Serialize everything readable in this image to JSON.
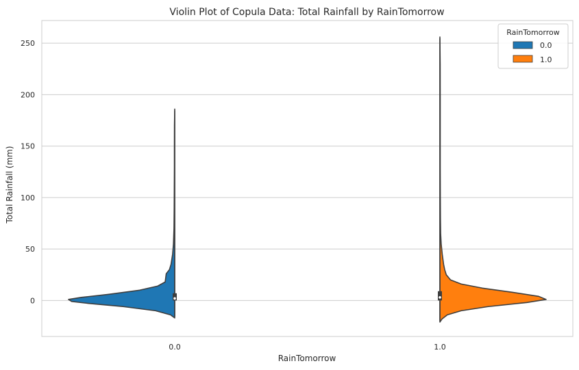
{
  "chart_data": {
    "type": "violin",
    "title": "Violin Plot of Copula Data: Total Rainfall by RainTomorrow",
    "xlabel": "RainTomorrow",
    "ylabel": "Total Rainfall (mm)",
    "categories": [
      "0.0",
      "1.0"
    ],
    "ylim": [
      -35,
      272
    ],
    "yticks": [
      0,
      50,
      100,
      150,
      200,
      250
    ],
    "grid": "horizontal",
    "split": true,
    "legend": {
      "title": "RainTomorrow",
      "placement": "top-right",
      "entries": [
        {
          "label": "0.0",
          "color": "#1f77b4"
        },
        {
          "label": "1.0",
          "color": "#ff7f0e"
        }
      ]
    },
    "series": [
      {
        "name": "0.0",
        "category": "0.0",
        "side": "left",
        "color": "#1f77b4",
        "range": [
          -17,
          186
        ],
        "quartiles": [
          0,
          2,
          7
        ],
        "density": [
          [
            -17,
            0.0
          ],
          [
            -14,
            0.04
          ],
          [
            -10,
            0.18
          ],
          [
            -6,
            0.48
          ],
          [
            -3,
            0.8
          ],
          [
            -1,
            0.97
          ],
          [
            1,
            1.0
          ],
          [
            3,
            0.88
          ],
          [
            6,
            0.62
          ],
          [
            10,
            0.33
          ],
          [
            14,
            0.16
          ],
          [
            18,
            0.09
          ],
          [
            22,
            0.085
          ],
          [
            26,
            0.08
          ],
          [
            30,
            0.05
          ],
          [
            35,
            0.035
          ],
          [
            45,
            0.02
          ],
          [
            55,
            0.012
          ],
          [
            70,
            0.007
          ],
          [
            90,
            0.005
          ],
          [
            110,
            0.004
          ],
          [
            130,
            0.003
          ],
          [
            150,
            0.003
          ],
          [
            170,
            0.0025
          ],
          [
            186,
            0.0
          ]
        ]
      },
      {
        "name": "1.0",
        "category": "1.0",
        "side": "right",
        "color": "#ff7f0e",
        "range": [
          -21,
          256
        ],
        "quartiles": [
          0,
          3,
          9
        ],
        "density": [
          [
            -21,
            0.0
          ],
          [
            -18,
            0.02
          ],
          [
            -14,
            0.07
          ],
          [
            -10,
            0.2
          ],
          [
            -6,
            0.45
          ],
          [
            -2,
            0.82
          ],
          [
            1,
            1.0
          ],
          [
            4,
            0.93
          ],
          [
            8,
            0.68
          ],
          [
            12,
            0.4
          ],
          [
            16,
            0.2
          ],
          [
            20,
            0.1
          ],
          [
            25,
            0.06
          ],
          [
            30,
            0.045
          ],
          [
            35,
            0.035
          ],
          [
            45,
            0.022
          ],
          [
            55,
            0.012
          ],
          [
            65,
            0.007
          ],
          [
            80,
            0.005
          ],
          [
            100,
            0.004
          ],
          [
            130,
            0.003
          ],
          [
            160,
            0.003
          ],
          [
            200,
            0.003
          ],
          [
            230,
            0.0025
          ],
          [
            256,
            0.0
          ]
        ]
      }
    ]
  }
}
